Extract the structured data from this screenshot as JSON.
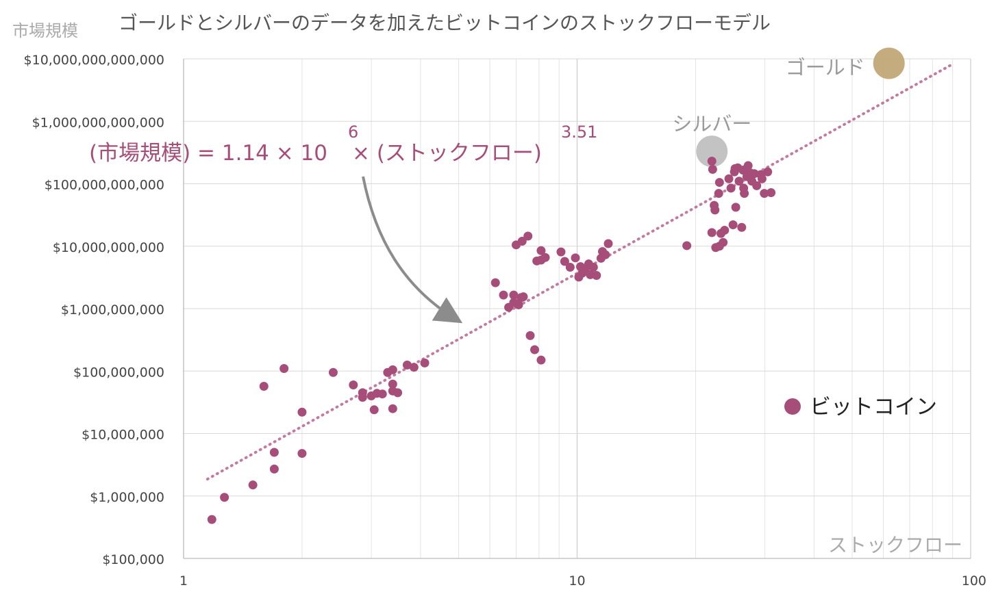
{
  "chart_data": {
    "type": "scatter",
    "title": "ゴールドとシルバーのデータを加えたビットコインのストックフローモデル",
    "xlabel": "ストックフロー",
    "ylabel": "市場規模",
    "xscale": "log",
    "yscale": "log",
    "xlim": [
      1,
      100
    ],
    "ylim": [
      100000,
      10000000000000
    ],
    "grid": true,
    "x_tick_labels": [
      "1",
      "10",
      "100"
    ],
    "x_tick_values": [
      1,
      10,
      100
    ],
    "y_tick_labels": [
      "$100,000",
      "$1,000,000",
      "$10,000,000",
      "$100,000,000",
      "$1,000,000,000",
      "$10,000,000,000",
      "$100,000,000,000",
      "$1,000,000,000,000",
      "$10,000,000,000,000"
    ],
    "y_tick_values": [
      100000,
      1000000,
      10000000,
      100000000,
      1000000000,
      10000000000,
      100000000000,
      1000000000000,
      10000000000000
    ],
    "legend": {
      "position": "right",
      "entries": [
        {
          "label": "ビットコイン",
          "color": "#a64d79"
        }
      ]
    },
    "formula": {
      "prefix": "(市場規模) = 1.14 × 10",
      "exponent1": "6",
      "middle": " × (ストックフロー)",
      "exponent2": "3.51"
    },
    "colors": {
      "bitcoin": "#a64d79",
      "trendline": "#c27ba0",
      "gold": "#c2a878",
      "silver": "#c0c0c0",
      "arrow": "#8c8c8c",
      "annotation": "#999999",
      "formula": "#a64d79"
    },
    "trendline": {
      "coefficient": 1140000,
      "exponent": 3.51,
      "x_range": [
        1.15,
        90
      ]
    },
    "highlight_points": [
      {
        "label": "ゴールド",
        "x": 62,
        "y": 8500000000000
      },
      {
        "label": "シルバー",
        "x": 22,
        "y": 330000000000
      }
    ],
    "series": [
      {
        "name": "ビットコイン",
        "points": [
          [
            1.18,
            420000
          ],
          [
            1.27,
            950000
          ],
          [
            1.5,
            1500000
          ],
          [
            1.6,
            57000000
          ],
          [
            1.7,
            5000000
          ],
          [
            1.7,
            2700000
          ],
          [
            1.8,
            110000000
          ],
          [
            2.0,
            22000000
          ],
          [
            2.0,
            4800000
          ],
          [
            2.4,
            95000000
          ],
          [
            2.7,
            60000000
          ],
          [
            2.85,
            45000000
          ],
          [
            2.85,
            38000000
          ],
          [
            3.0,
            40000000
          ],
          [
            3.05,
            24000000
          ],
          [
            3.1,
            44000000
          ],
          [
            3.2,
            43000000
          ],
          [
            3.3,
            95000000
          ],
          [
            3.4,
            105000000
          ],
          [
            3.4,
            62000000
          ],
          [
            3.4,
            48000000
          ],
          [
            3.4,
            25000000
          ],
          [
            3.5,
            45000000
          ],
          [
            3.7,
            125000000
          ],
          [
            3.85,
            115000000
          ],
          [
            4.1,
            135000000
          ],
          [
            6.2,
            2600000000
          ],
          [
            6.5,
            1650000000
          ],
          [
            6.7,
            1050000000
          ],
          [
            6.9,
            1650000000
          ],
          [
            6.9,
            1250000000
          ],
          [
            7.1,
            1150000000
          ],
          [
            7.2,
            1500000000
          ],
          [
            7.3,
            1550000000
          ],
          [
            7.0,
            10500000000
          ],
          [
            7.25,
            12000000000
          ],
          [
            7.5,
            14500000000
          ],
          [
            7.6,
            370000000
          ],
          [
            7.8,
            220000000
          ],
          [
            8.1,
            150000000
          ],
          [
            7.9,
            5800000000
          ],
          [
            8.1,
            6000000000
          ],
          [
            8.1,
            8500000000
          ],
          [
            8.3,
            6600000000
          ],
          [
            9.1,
            8100000000
          ],
          [
            9.3,
            5700000000
          ],
          [
            9.6,
            4600000000
          ],
          [
            9.9,
            6500000000
          ],
          [
            10.1,
            3200000000
          ],
          [
            10.2,
            4700000000
          ],
          [
            10.3,
            3700000000
          ],
          [
            10.5,
            4400000000
          ],
          [
            10.7,
            5200000000
          ],
          [
            10.8,
            3500000000
          ],
          [
            11.0,
            4600000000
          ],
          [
            11.2,
            3400000000
          ],
          [
            11.5,
            6400000000
          ],
          [
            11.6,
            8200000000
          ],
          [
            11.8,
            7300000000
          ],
          [
            12.0,
            11000000000
          ],
          [
            19.0,
            10200000000
          ],
          [
            22.0,
            230000000000
          ],
          [
            22.1,
            170000000000
          ],
          [
            22.0,
            16500000000
          ],
          [
            22.3,
            45000000000
          ],
          [
            22.4,
            38000000000
          ],
          [
            22.5,
            9500000000
          ],
          [
            22.9,
            70000000000
          ],
          [
            23.0,
            105000000000
          ],
          [
            23.0,
            10000000000
          ],
          [
            23.2,
            16000000000
          ],
          [
            23.5,
            11500000000
          ],
          [
            23.7,
            18000000000
          ],
          [
            24.3,
            120000000000
          ],
          [
            24.6,
            85000000000
          ],
          [
            24.9,
            22000000000
          ],
          [
            25.1,
            155000000000
          ],
          [
            25.2,
            175000000000
          ],
          [
            25.3,
            42000000000
          ],
          [
            25.6,
            180000000000
          ],
          [
            25.8,
            110000000000
          ],
          [
            26.2,
            20000000000
          ],
          [
            26.4,
            165000000000
          ],
          [
            26.5,
            85000000000
          ],
          [
            26.6,
            70000000000
          ],
          [
            26.8,
            170000000000
          ],
          [
            27.0,
            130000000000
          ],
          [
            27.2,
            195000000000
          ],
          [
            27.5,
            150000000000
          ],
          [
            27.8,
            110000000000
          ],
          [
            28.2,
            145000000000
          ],
          [
            28.6,
            93000000000
          ],
          [
            29.3,
            140000000000
          ],
          [
            29.5,
            120000000000
          ],
          [
            29.9,
            70000000000
          ],
          [
            30.5,
            155000000000
          ],
          [
            31.1,
            72000000000
          ]
        ]
      }
    ]
  }
}
